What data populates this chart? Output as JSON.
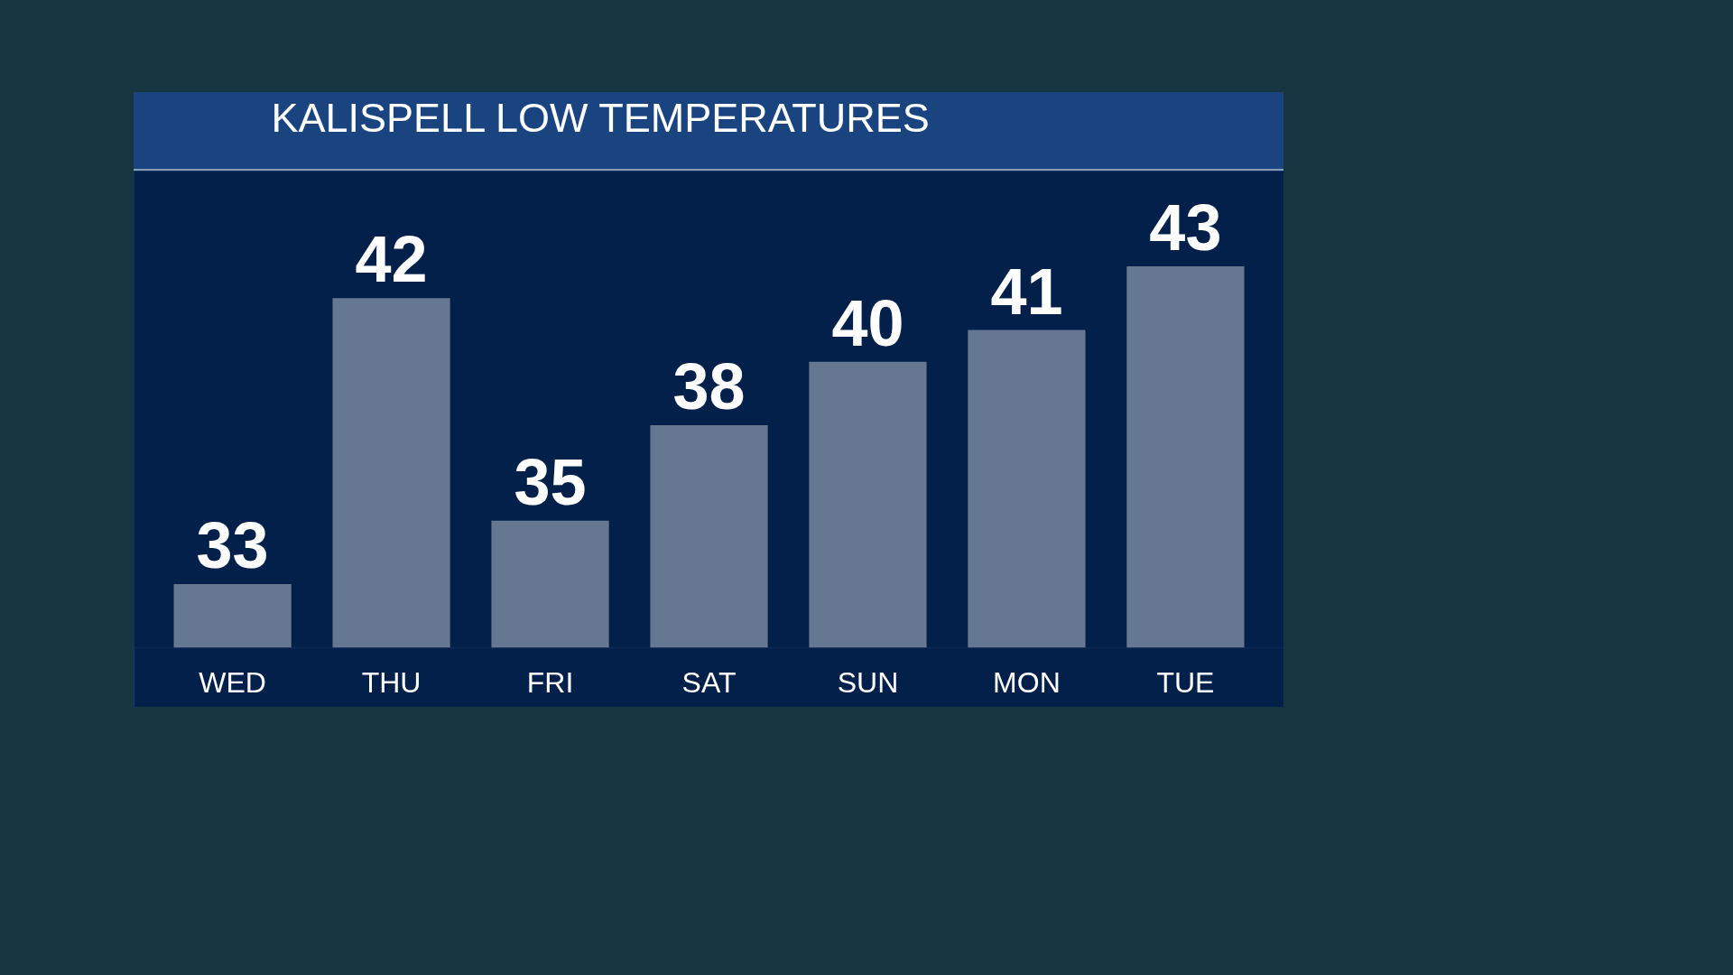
{
  "chart_data": {
    "type": "bar",
    "title": "KALISPELL LOW TEMPERATURES",
    "categories": [
      "WED",
      "THU",
      "FRI",
      "SAT",
      "SUN",
      "MON",
      "TUE"
    ],
    "values": [
      33,
      42,
      35,
      38,
      40,
      41,
      43
    ],
    "color": "#667791",
    "ylim": [
      31,
      46
    ],
    "data_labels": true,
    "tick_labels": "x"
  }
}
